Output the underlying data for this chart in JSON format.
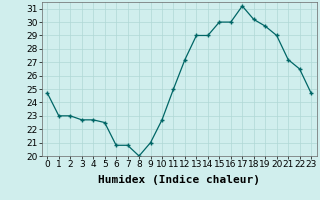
{
  "x": [
    0,
    1,
    2,
    3,
    4,
    5,
    6,
    7,
    8,
    9,
    10,
    11,
    12,
    13,
    14,
    15,
    16,
    17,
    18,
    19,
    20,
    21,
    22,
    23
  ],
  "y": [
    24.7,
    23.0,
    23.0,
    22.7,
    22.7,
    22.5,
    20.8,
    20.8,
    20.0,
    21.0,
    22.7,
    25.0,
    27.2,
    29.0,
    29.0,
    30.0,
    30.0,
    31.2,
    30.2,
    29.7,
    29.0,
    27.2,
    26.5,
    24.7
  ],
  "line_color": "#006666",
  "marker": "+",
  "marker_size": 3,
  "xlabel": "Humidex (Indice chaleur)",
  "xlim": [
    -0.5,
    23.5
  ],
  "ylim": [
    20,
    31.5
  ],
  "yticks": [
    20,
    21,
    22,
    23,
    24,
    25,
    26,
    27,
    28,
    29,
    30,
    31
  ],
  "xticks": [
    0,
    1,
    2,
    3,
    4,
    5,
    6,
    7,
    8,
    9,
    10,
    11,
    12,
    13,
    14,
    15,
    16,
    17,
    18,
    19,
    20,
    21,
    22,
    23
  ],
  "bg_color": "#d0eeed",
  "grid_color": "#b0d8d5",
  "tick_label_fontsize": 6.5,
  "xlabel_fontsize": 8
}
